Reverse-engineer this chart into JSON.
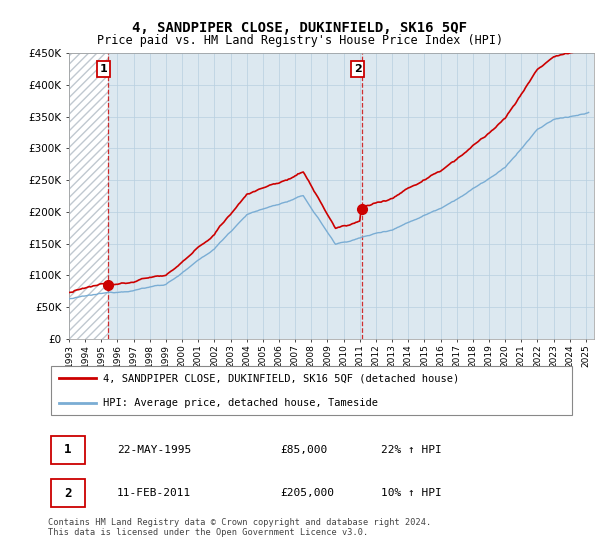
{
  "title": "4, SANDPIPER CLOSE, DUKINFIELD, SK16 5QF",
  "subtitle": "Price paid vs. HM Land Registry's House Price Index (HPI)",
  "ylim": [
    0,
    450000
  ],
  "yticks": [
    0,
    50000,
    100000,
    150000,
    200000,
    250000,
    300000,
    350000,
    400000,
    450000
  ],
  "ytick_labels": [
    "£0",
    "£50K",
    "£100K",
    "£150K",
    "£200K",
    "£250K",
    "£300K",
    "£350K",
    "£400K",
    "£450K"
  ],
  "sale1_date": 1995.39,
  "sale1_price": 85000,
  "sale2_date": 2011.11,
  "sale2_price": 205000,
  "legend_line1": "4, SANDPIPER CLOSE, DUKINFIELD, SK16 5QF (detached house)",
  "legend_line2": "HPI: Average price, detached house, Tameside",
  "annotation1_label": "1",
  "annotation1_date": "22-MAY-1995",
  "annotation1_price": "£85,000",
  "annotation1_hpi": "22% ↑ HPI",
  "annotation2_label": "2",
  "annotation2_date": "11-FEB-2011",
  "annotation2_price": "£205,000",
  "annotation2_hpi": "10% ↑ HPI",
  "footer": "Contains HM Land Registry data © Crown copyright and database right 2024.\nThis data is licensed under the Open Government Licence v3.0.",
  "hpi_color": "#7aadd4",
  "price_color": "#cc0000",
  "bg_color": "#dce8f0",
  "grid_color": "#b8cfe0",
  "annotation_box_color": "#cc0000",
  "hatch_color": "#c0c8d0",
  "xlim_start": 1993.0,
  "xlim_end": 2025.5,
  "hatch_end": 1995.39
}
